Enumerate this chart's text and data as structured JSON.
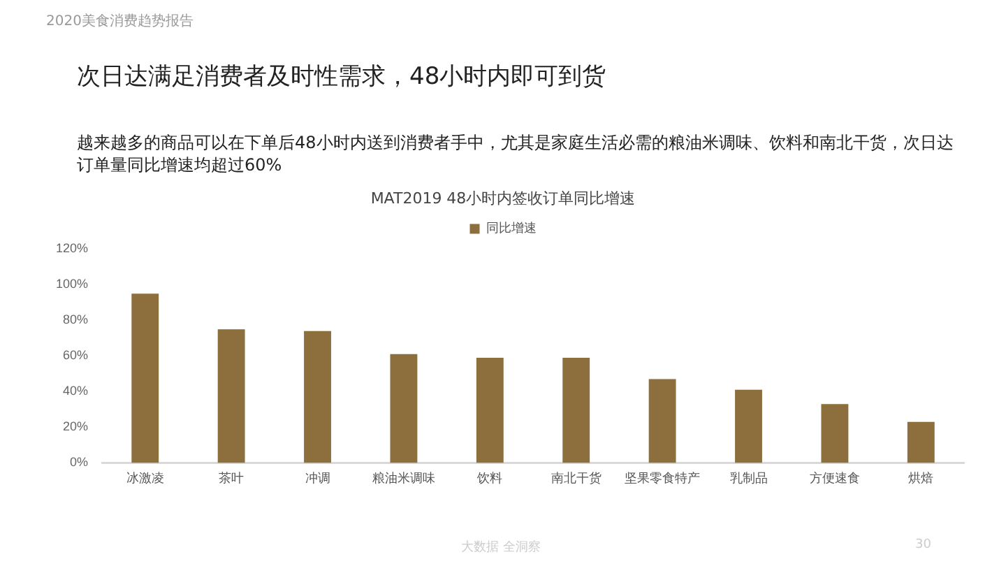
{
  "chart_data": {
    "type": "bar",
    "title": "MAT2019 48小时内签收订单同比增速",
    "categories": [
      "冰激凌",
      "茶叶",
      "冲调",
      "粮油米调味",
      "饮料",
      "南北干货",
      "坚果零食特产",
      "乳制品",
      "方便速食",
      "烘焙"
    ],
    "series": [
      {
        "name": "同比增速",
        "color": "#8c6f3c",
        "values": [
          95,
          75,
          74,
          61,
          59,
          59,
          47,
          41,
          33,
          23
        ]
      }
    ],
    "ylim": [
      0,
      120
    ],
    "yticks": [
      {
        "value": 0,
        "label": "0%"
      },
      {
        "value": 20,
        "label": "20%"
      },
      {
        "value": 40,
        "label": "40%"
      },
      {
        "value": 60,
        "label": "60%"
      },
      {
        "value": 80,
        "label": "80%"
      },
      {
        "value": 100,
        "label": "100%"
      },
      {
        "value": 120,
        "label": "120%"
      }
    ],
    "grid": false,
    "legend": "top",
    "annotations": [
      "2020美食消费趋势报告",
      "次日达满足消费者及时性需求，48小时内即可到货",
      "越来越多的商品可以在下单后48小时内送到消费者手中，尤其是家庭生活必需的粮油米调味、饮料和南北干货，次日达订单量同比增速均超过60%",
      "大数据 全洞察",
      "30"
    ]
  }
}
